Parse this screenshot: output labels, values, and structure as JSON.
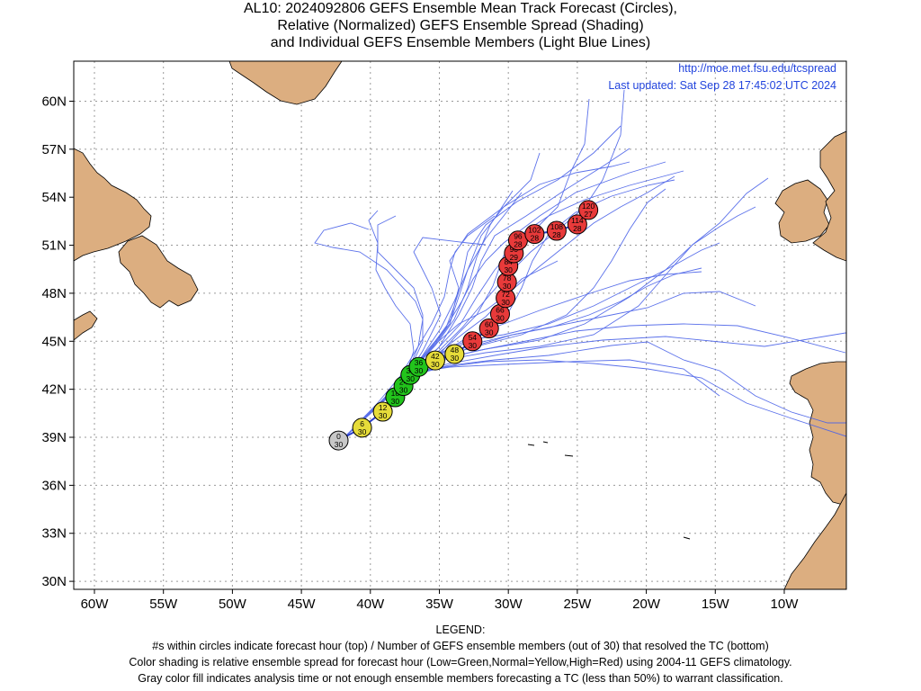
{
  "title": {
    "line1": "AL10: 2024092806 GEFS Ensemble Mean Track Forecast (Circles),",
    "line2": "Relative (Normalized) GEFS Ensemble Spread (Shading)",
    "line3": "and Individual GEFS Ensemble Members (Light Blue Lines)"
  },
  "source": {
    "url": "http://moe.met.fsu.edu/tcspread",
    "updated": "Last updated: Sat Sep 28 17:45:02 UTC 2024"
  },
  "map": {
    "lon_range": [
      -61.5,
      -5.5
    ],
    "lat_range": [
      29.5,
      62.5
    ],
    "lon_ticks": [
      -60,
      -55,
      -50,
      -45,
      -40,
      -35,
      -30,
      -25,
      -20,
      -15,
      -10
    ],
    "lon_tick_labels": [
      "60W",
      "55W",
      "50W",
      "45W",
      "40W",
      "35W",
      "30W",
      "25W",
      "20W",
      "15W",
      "10W"
    ],
    "lat_ticks": [
      60,
      57,
      54,
      51,
      48,
      45,
      42,
      39,
      36,
      33,
      30
    ],
    "lat_tick_labels": [
      "60N",
      "57N",
      "54N",
      "51N",
      "48N",
      "45N",
      "42N",
      "39N",
      "36N",
      "33N",
      "30N"
    ],
    "grid": true,
    "colors": {
      "land": "#dcae80",
      "member_lines": "#4a62e8",
      "low": "#22c41c",
      "normal": "#e6dc3a",
      "high": "#e83a3a",
      "analysis": "#c8c8c8",
      "text_link": "#2244dd"
    }
  },
  "mean_track": [
    {
      "hour": "0",
      "members": "30",
      "lon": -42.3,
      "lat": 38.8,
      "spread": "analysis"
    },
    {
      "hour": "6",
      "members": "30",
      "lon": -40.6,
      "lat": 39.6,
      "spread": "normal"
    },
    {
      "hour": "12",
      "members": "30",
      "lon": -39.1,
      "lat": 40.6,
      "spread": "normal"
    },
    {
      "hour": "18",
      "members": "30",
      "lon": -38.2,
      "lat": 41.5,
      "spread": "low"
    },
    {
      "hour": "24",
      "members": "30",
      "lon": -37.6,
      "lat": 42.2,
      "spread": "low"
    },
    {
      "hour": "30",
      "members": "30",
      "lon": -37.1,
      "lat": 42.9,
      "spread": "low"
    },
    {
      "hour": "36",
      "members": "30",
      "lon": -36.5,
      "lat": 43.4,
      "spread": "low"
    },
    {
      "hour": "42",
      "members": "30",
      "lon": -35.3,
      "lat": 43.8,
      "spread": "normal"
    },
    {
      "hour": "48",
      "members": "30",
      "lon": -33.9,
      "lat": 44.2,
      "spread": "normal"
    },
    {
      "hour": "54",
      "members": "30",
      "lon": -32.6,
      "lat": 45.0,
      "spread": "high"
    },
    {
      "hour": "60",
      "members": "30",
      "lon": -31.4,
      "lat": 45.8,
      "spread": "high"
    },
    {
      "hour": "66",
      "members": "30",
      "lon": -30.6,
      "lat": 46.7,
      "spread": "high"
    },
    {
      "hour": "72",
      "members": "30",
      "lon": -30.2,
      "lat": 47.7,
      "spread": "high"
    },
    {
      "hour": "78",
      "members": "30",
      "lon": -30.1,
      "lat": 48.7,
      "spread": "high"
    },
    {
      "hour": "84",
      "members": "30",
      "lon": -30.0,
      "lat": 49.7,
      "spread": "high"
    },
    {
      "hour": "90",
      "members": "29",
      "lon": -29.6,
      "lat": 50.5,
      "spread": "high"
    },
    {
      "hour": "96",
      "members": "28",
      "lon": -29.3,
      "lat": 51.3,
      "spread": "high"
    },
    {
      "hour": "102",
      "members": "28",
      "lon": -28.1,
      "lat": 51.7,
      "spread": "high"
    },
    {
      "hour": "108",
      "members": "28",
      "lon": -26.5,
      "lat": 51.9,
      "spread": "high"
    },
    {
      "hour": "114",
      "members": "28",
      "lon": -25.0,
      "lat": 52.3,
      "spread": "high"
    },
    {
      "hour": "120",
      "members": "27",
      "lon": -24.2,
      "lat": 53.2,
      "spread": "high"
    }
  ],
  "legend": {
    "heading": "LEGEND:",
    "line1": "#s within circles indicate forecast hour (top) / Number of GEFS ensemble members (out of 30) that resolved the TC (bottom)",
    "line2": "Color shading is relative ensemble spread for forecast hour (Low=Green,Normal=Yellow,High=Red) using 2004-11 GEFS climatology.",
    "line3": "Gray color fill indicates analysis time or not enough ensemble members forecasting a TC (less than 50%) to warrant classification."
  }
}
